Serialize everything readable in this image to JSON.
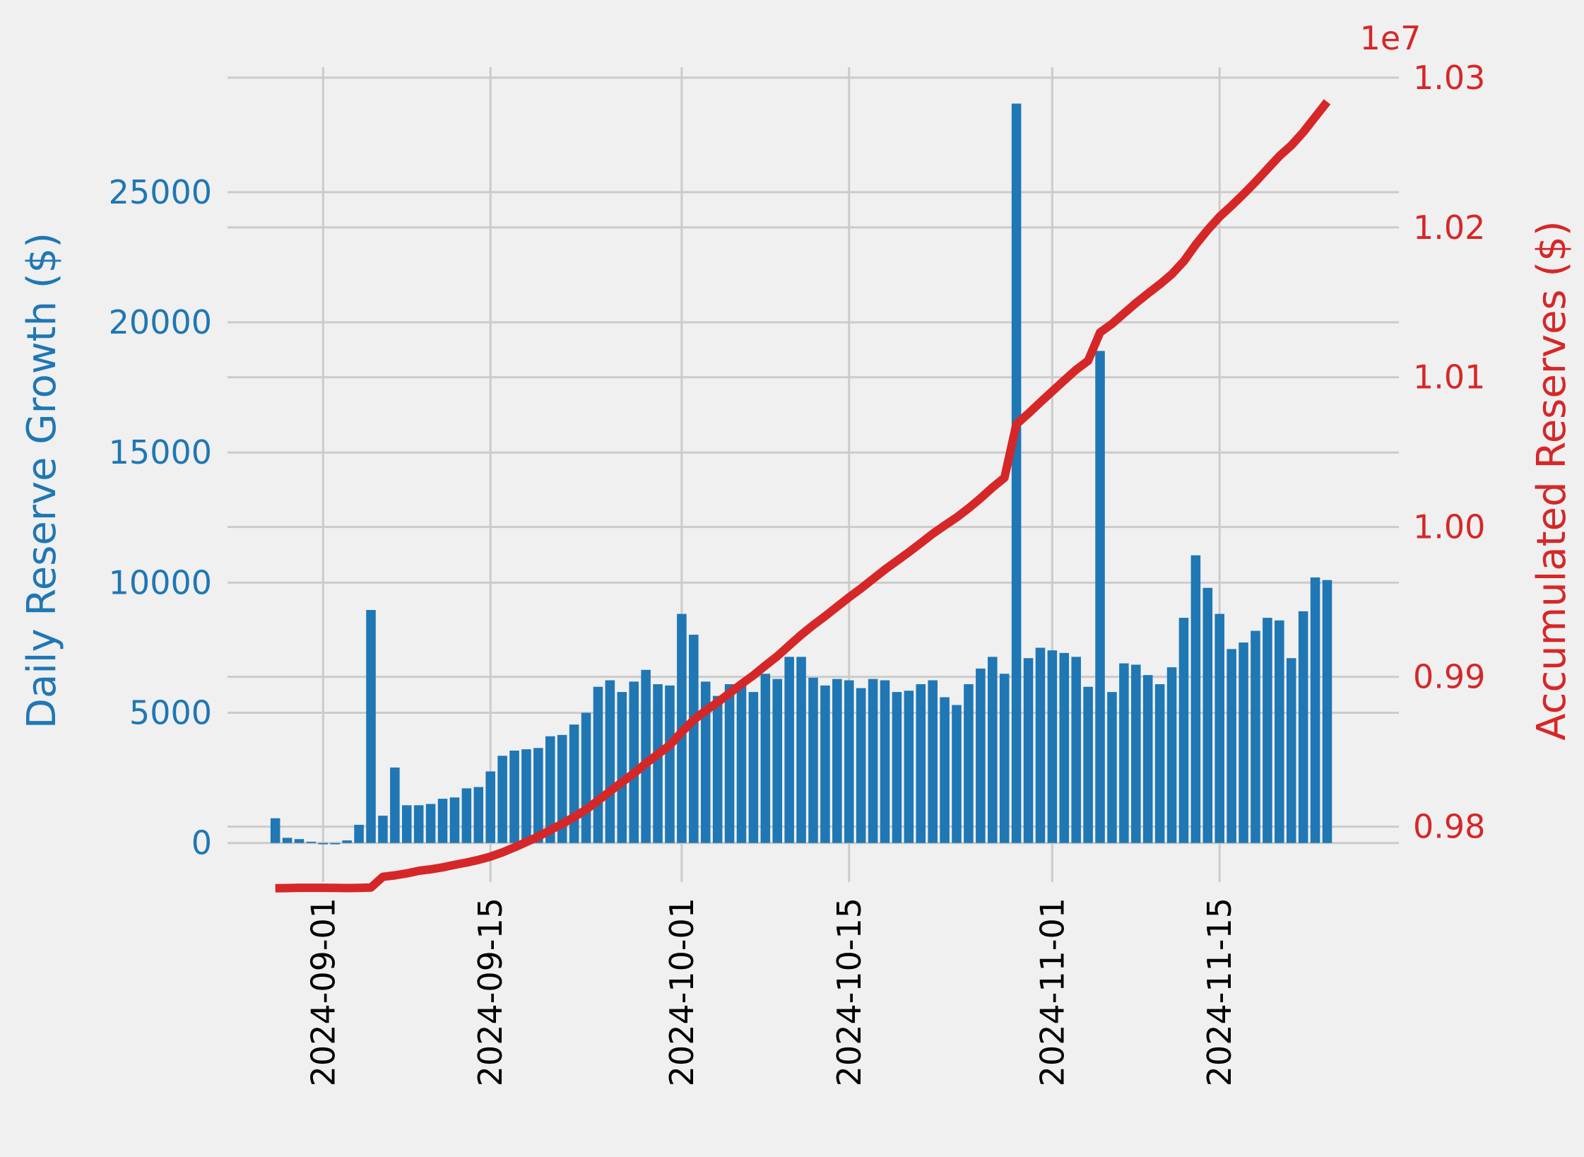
{
  "chart_data": {
    "type": "bar+line",
    "title": "",
    "xlabel": "",
    "x_ticks": [
      "2024-09-01",
      "2024-09-15",
      "2024-10-01",
      "2024-10-15",
      "2024-11-01",
      "2024-11-15"
    ],
    "x_start": "2024-08-28",
    "left_axis": {
      "label": "Daily Reserve Growth ($)",
      "color": "#1f77b4",
      "ticks": [
        "0",
        "5000",
        "10000",
        "15000",
        "20000",
        "25000"
      ],
      "ylim": [
        -1500,
        29800
      ]
    },
    "right_axis": {
      "label": "Accumulated Reserves ($)",
      "color": "#d62728",
      "offset_text": "1e7",
      "ticks": [
        "0.98",
        "0.99",
        "1.00",
        "1.01",
        "1.02",
        "1.03"
      ],
      "ylim": [
        0.9763,
        1.0307
      ]
    },
    "series": [
      {
        "name": "Daily Reserve Growth ($)",
        "kind": "bar",
        "color": "#1f77b4",
        "values": [
          950,
          200,
          150,
          50,
          -50,
          -50,
          100,
          700,
          8950,
          1050,
          2900,
          1450,
          1450,
          1500,
          1700,
          1750,
          2100,
          2150,
          2750,
          3350,
          3550,
          3600,
          3650,
          4100,
          4150,
          4550,
          5000,
          6000,
          6250,
          5800,
          6200,
          6650,
          6100,
          6050,
          8800,
          8000,
          6200,
          5650,
          6100,
          6050,
          5800,
          6500,
          6300,
          7150,
          7150,
          6350,
          6050,
          6300,
          6250,
          5950,
          6300,
          6250,
          5800,
          5850,
          6100,
          6250,
          5600,
          5300,
          6100,
          6700,
          7150,
          6500,
          28400,
          7100,
          7500,
          7400,
          7300,
          7150,
          6000,
          18900,
          5800,
          6900,
          6850,
          6450,
          6100,
          6750,
          8650,
          11050,
          9800,
          8800,
          7450,
          7700,
          8150,
          8650,
          8550,
          7100,
          8900,
          10200,
          10100
        ]
      },
      {
        "name": "Accumulated Reserves ($)",
        "kind": "line",
        "color": "#d62728",
        "values": [
          0.97589,
          0.9759,
          0.97592,
          0.97592,
          0.97592,
          0.97591,
          0.9759,
          0.97591,
          0.97593,
          0.97665,
          0.97675,
          0.97688,
          0.97705,
          0.97715,
          0.97728,
          0.97745,
          0.9776,
          0.97778,
          0.978,
          0.97828,
          0.97861,
          0.97897,
          0.97934,
          0.97977,
          0.98018,
          0.98064,
          0.98114,
          0.98174,
          0.98236,
          0.98296,
          0.98356,
          0.98422,
          0.98483,
          0.98544,
          0.98632,
          0.98712,
          0.98774,
          0.9883,
          0.98891,
          0.98952,
          0.9901,
          0.99075,
          0.99138,
          0.9921,
          0.99281,
          0.99345,
          0.99405,
          0.99468,
          0.99531,
          0.9959,
          0.99653,
          0.99716,
          0.99774,
          0.99832,
          0.99893,
          0.99955,
          1.00011,
          1.00064,
          1.00125,
          1.00192,
          1.00264,
          1.00329,
          1.00686,
          1.00757,
          1.00832,
          1.00906,
          1.00979,
          1.0105,
          1.0111,
          1.01299,
          1.01357,
          1.01426,
          1.01495,
          1.01559,
          1.0162,
          1.01688,
          1.01774,
          1.01885,
          1.01983,
          1.02071,
          1.02145,
          1.02222,
          1.02304,
          1.0239,
          1.02476,
          1.02547,
          1.02636,
          1.02738,
          1.02839
        ]
      }
    ],
    "grid": true,
    "legend": "none"
  }
}
